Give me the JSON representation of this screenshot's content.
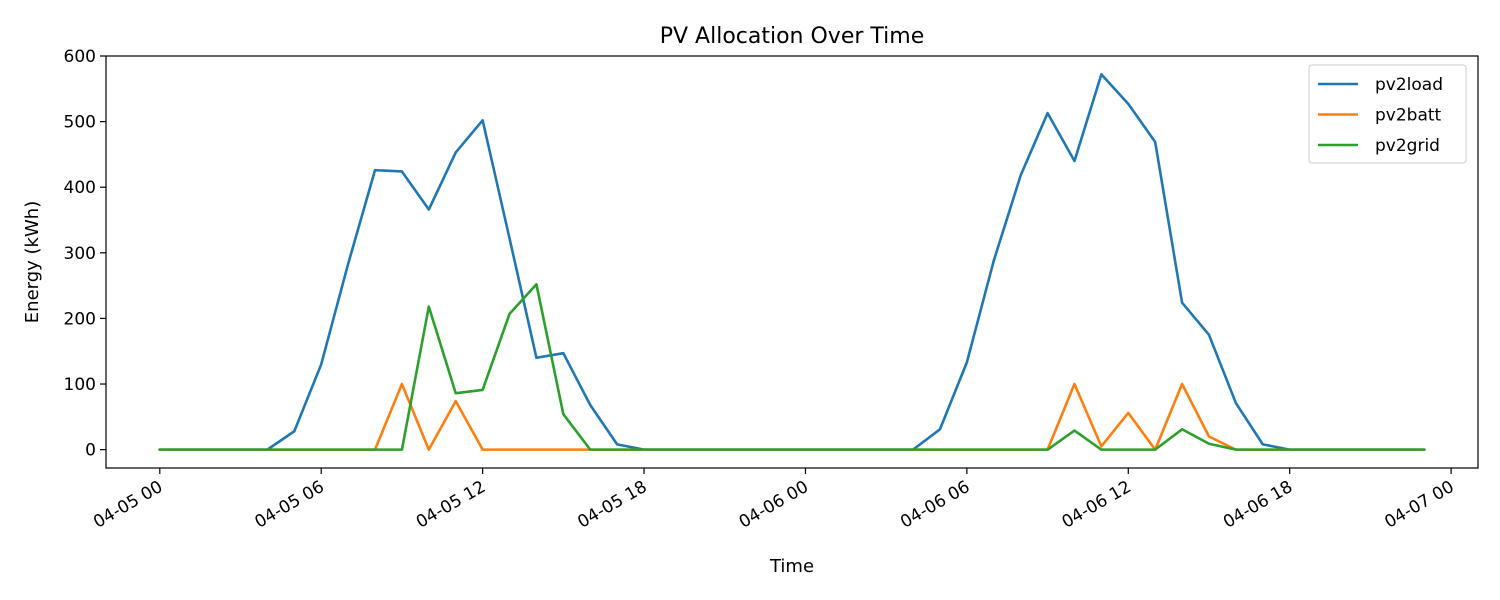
{
  "chart_data": {
    "type": "line",
    "title": "PV Allocation Over Time",
    "xlabel": "Time",
    "ylabel": "Energy (kWh)",
    "ylim": [
      -28,
      600
    ],
    "xlim": [
      "04-04 22:00",
      "04-07 01:00"
    ],
    "yticks": [
      0,
      100,
      200,
      300,
      400,
      500,
      600
    ],
    "xticks": [
      "04-05 00",
      "04-05 06",
      "04-05 12",
      "04-05 18",
      "04-06 00",
      "04-06 06",
      "04-06 12",
      "04-06 18",
      "04-07 00"
    ],
    "legend_position": "top-right",
    "grid": false,
    "x": [
      "04-05 00",
      "04-05 01",
      "04-05 02",
      "04-05 03",
      "04-05 04",
      "04-05 05",
      "04-05 06",
      "04-05 07",
      "04-05 08",
      "04-05 09",
      "04-05 10",
      "04-05 11",
      "04-05 12",
      "04-05 13",
      "04-05 14",
      "04-05 15",
      "04-05 16",
      "04-05 17",
      "04-05 18",
      "04-05 19",
      "04-05 20",
      "04-05 21",
      "04-05 22",
      "04-05 23",
      "04-06 00",
      "04-06 01",
      "04-06 02",
      "04-06 03",
      "04-06 04",
      "04-06 05",
      "04-06 06",
      "04-06 07",
      "04-06 08",
      "04-06 09",
      "04-06 10",
      "04-06 11",
      "04-06 12",
      "04-06 13",
      "04-06 14",
      "04-06 15",
      "04-06 16",
      "04-06 17",
      "04-06 18",
      "04-06 19",
      "04-06 20",
      "04-06 21",
      "04-06 22",
      "04-06 23"
    ],
    "series": [
      {
        "name": "pv2load",
        "color": "#1f77b4",
        "values": [
          0,
          0,
          0,
          0,
          0,
          28,
          130,
          283,
          426,
          424,
          366,
          453,
          502,
          322,
          140,
          147,
          68,
          8,
          0,
          0,
          0,
          0,
          0,
          0,
          0,
          0,
          0,
          0,
          0,
          31,
          133,
          288,
          418,
          513,
          440,
          572,
          527,
          469,
          224,
          175,
          71,
          8,
          0,
          0,
          0,
          0,
          0,
          0
        ]
      },
      {
        "name": "pv2batt",
        "color": "#ff7f0e",
        "values": [
          0,
          0,
          0,
          0,
          0,
          0,
          0,
          0,
          0,
          100,
          0,
          74,
          0,
          0,
          0,
          0,
          0,
          0,
          0,
          0,
          0,
          0,
          0,
          0,
          0,
          0,
          0,
          0,
          0,
          0,
          0,
          0,
          0,
          0,
          100,
          5,
          56,
          0,
          100,
          20,
          0,
          0,
          0,
          0,
          0,
          0,
          0,
          0
        ]
      },
      {
        "name": "pv2grid",
        "color": "#2ca02c",
        "values": [
          0,
          0,
          0,
          0,
          0,
          0,
          0,
          0,
          0,
          0,
          218,
          86,
          91,
          207,
          252,
          54,
          0,
          0,
          0,
          0,
          0,
          0,
          0,
          0,
          0,
          0,
          0,
          0,
          0,
          0,
          0,
          0,
          0,
          0,
          29,
          0,
          0,
          0,
          31,
          9,
          0,
          0,
          0,
          0,
          0,
          0,
          0,
          0
        ]
      }
    ]
  }
}
